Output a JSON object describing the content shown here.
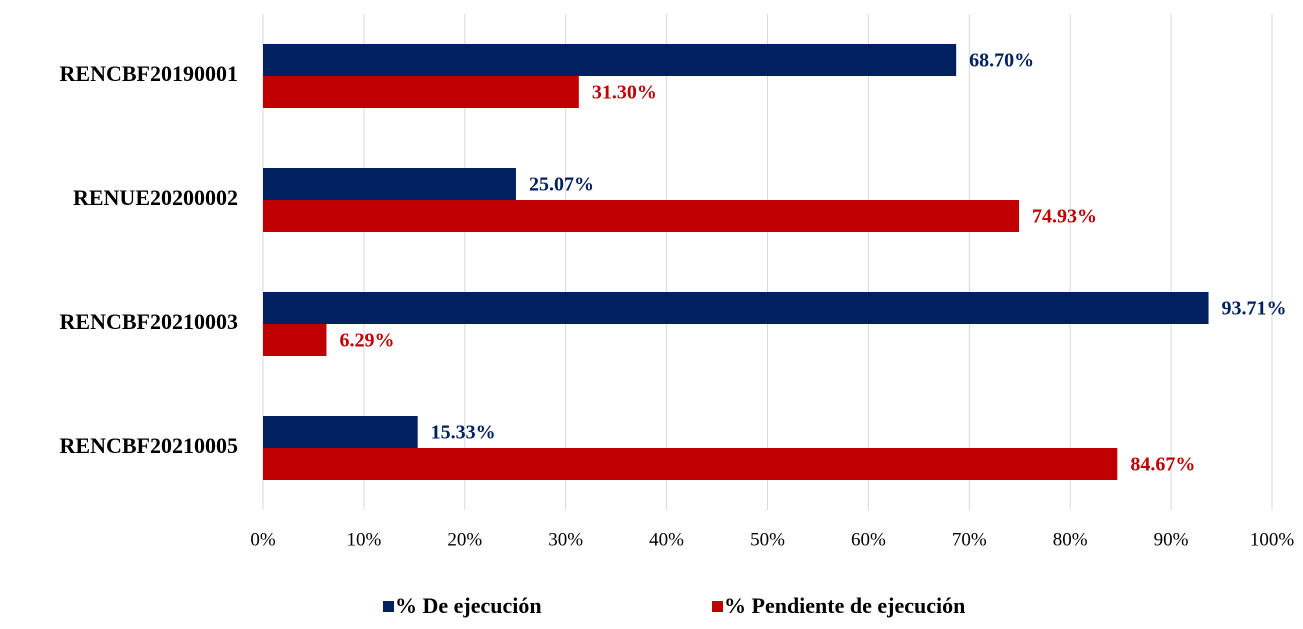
{
  "chart_data": {
    "type": "hbar",
    "categories": [
      "RENCBF20190001",
      "RENUE20200002",
      "RENCBF20210003",
      "RENCBF20210005"
    ],
    "series": [
      {
        "name": "% De ejecución",
        "color": "#002060",
        "values": [
          68.7,
          25.07,
          93.71,
          15.33
        ],
        "value_labels": [
          "68.70%",
          "25.07%",
          "93.71%",
          "15.33%"
        ]
      },
      {
        "name": "% Pendiente de ejecución",
        "color": "#c00000",
        "values": [
          31.3,
          74.93,
          6.29,
          84.67
        ],
        "value_labels": [
          "31.30%",
          "74.93%",
          "6.29%",
          "84.67%"
        ]
      }
    ],
    "xlim": [
      0,
      100
    ],
    "xticks": [
      {
        "value": 0,
        "label": "0%"
      },
      {
        "value": 10,
        "label": "10%"
      },
      {
        "value": 20,
        "label": "20%"
      },
      {
        "value": 30,
        "label": "30%"
      },
      {
        "value": 40,
        "label": "40%"
      },
      {
        "value": 50,
        "label": "50%"
      },
      {
        "value": 60,
        "label": "60%"
      },
      {
        "value": 70,
        "label": "70%"
      },
      {
        "value": 80,
        "label": "80%"
      },
      {
        "value": 90,
        "label": "90%"
      },
      {
        "value": 100,
        "label": "100%"
      }
    ],
    "grid": true,
    "legend": "bottom"
  }
}
